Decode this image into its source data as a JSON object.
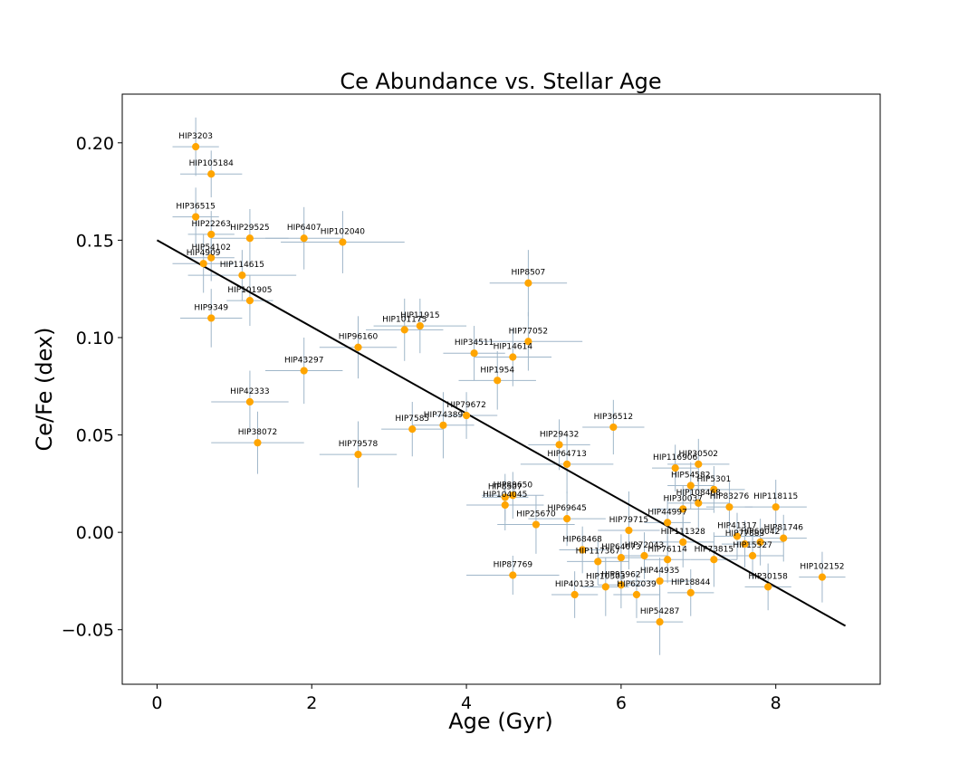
{
  "chart_data": {
    "type": "scatter",
    "title": "Ce Abundance vs. Stellar Age",
    "xlabel": "Age (Gyr)",
    "ylabel": "Ce/Fe (dex)",
    "xlim": [
      -0.45,
      9.35
    ],
    "ylim": [
      -0.078,
      0.225
    ],
    "xticks": [
      0,
      2,
      4,
      6,
      8
    ],
    "xtick_labels": [
      "0",
      "2",
      "4",
      "6",
      "8"
    ],
    "yticks": [
      -0.05,
      0.0,
      0.05,
      0.1,
      0.15,
      0.2
    ],
    "ytick_labels": [
      "−0.05",
      "0.00",
      "0.05",
      "0.10",
      "0.15",
      "0.20"
    ],
    "grid": false,
    "point_color": "#ffa500",
    "errorbar_color": "#9fb6c9",
    "fit_color": "#000000",
    "fit_line": {
      "x": [
        0,
        8.9
      ],
      "y": [
        0.15,
        -0.048
      ]
    },
    "points": [
      {
        "name": "HIP3203",
        "age": 0.5,
        "ce_fe": 0.198,
        "age_err": 0.3,
        "ce_fe_err": 0.015
      },
      {
        "name": "HIP105184",
        "age": 0.7,
        "ce_fe": 0.184,
        "age_err": 0.4,
        "ce_fe_err": 0.012
      },
      {
        "name": "HIP36515",
        "age": 0.5,
        "ce_fe": 0.162,
        "age_err": 0.3,
        "ce_fe_err": 0.015
      },
      {
        "name": "HIP22263",
        "age": 0.7,
        "ce_fe": 0.153,
        "age_err": 0.3,
        "ce_fe_err": 0.012
      },
      {
        "name": "HIP29525",
        "age": 1.2,
        "ce_fe": 0.151,
        "age_err": 0.5,
        "ce_fe_err": 0.015
      },
      {
        "name": "HIP6407",
        "age": 1.9,
        "ce_fe": 0.151,
        "age_err": 0.5,
        "ce_fe_err": 0.016
      },
      {
        "name": "HIP102040",
        "age": 2.4,
        "ce_fe": 0.149,
        "age_err": 0.8,
        "ce_fe_err": 0.016
      },
      {
        "name": "HIP54102",
        "age": 0.7,
        "ce_fe": 0.141,
        "age_err": 0.3,
        "ce_fe_err": 0.012
      },
      {
        "name": "HIP4909",
        "age": 0.6,
        "ce_fe": 0.138,
        "age_err": 0.4,
        "ce_fe_err": 0.015
      },
      {
        "name": "HIP114615",
        "age": 1.1,
        "ce_fe": 0.132,
        "age_err": 0.7,
        "ce_fe_err": 0.013
      },
      {
        "name": "HIP8507",
        "age": 4.8,
        "ce_fe": 0.128,
        "age_err": 0.5,
        "ce_fe_err": 0.017
      },
      {
        "name": "HIP101905",
        "age": 1.2,
        "ce_fe": 0.119,
        "age_err": 0.3,
        "ce_fe_err": 0.013
      },
      {
        "name": "HIP9349",
        "age": 0.7,
        "ce_fe": 0.11,
        "age_err": 0.4,
        "ce_fe_err": 0.015
      },
      {
        "name": "HIP101175",
        "age": 3.2,
        "ce_fe": 0.104,
        "age_err": 0.5,
        "ce_fe_err": 0.016
      },
      {
        "name": "HIP11915",
        "age": 3.4,
        "ce_fe": 0.106,
        "age_err": 0.6,
        "ce_fe_err": 0.014
      },
      {
        "name": "HIP77052",
        "age": 4.8,
        "ce_fe": 0.098,
        "age_err": 0.7,
        "ce_fe_err": 0.015
      },
      {
        "name": "HIP96160",
        "age": 2.6,
        "ce_fe": 0.095,
        "age_err": 0.5,
        "ce_fe_err": 0.016
      },
      {
        "name": "HIP34511",
        "age": 4.1,
        "ce_fe": 0.092,
        "age_err": 0.4,
        "ce_fe_err": 0.014
      },
      {
        "name": "HIP14614",
        "age": 4.6,
        "ce_fe": 0.09,
        "age_err": 0.5,
        "ce_fe_err": 0.015
      },
      {
        "name": "HIP43297",
        "age": 1.9,
        "ce_fe": 0.083,
        "age_err": 0.5,
        "ce_fe_err": 0.017
      },
      {
        "name": "HIP1954",
        "age": 4.4,
        "ce_fe": 0.078,
        "age_err": 0.5,
        "ce_fe_err": 0.015
      },
      {
        "name": "HIP42333",
        "age": 1.2,
        "ce_fe": 0.067,
        "age_err": 0.5,
        "ce_fe_err": 0.016
      },
      {
        "name": "HIP79672",
        "age": 4.0,
        "ce_fe": 0.06,
        "age_err": 0.4,
        "ce_fe_err": 0.012
      },
      {
        "name": "HIP74389",
        "age": 3.7,
        "ce_fe": 0.055,
        "age_err": 0.4,
        "ce_fe_err": 0.017
      },
      {
        "name": "HIP7585",
        "age": 3.3,
        "ce_fe": 0.053,
        "age_err": 0.4,
        "ce_fe_err": 0.014
      },
      {
        "name": "HIP36512",
        "age": 5.9,
        "ce_fe": 0.054,
        "age_err": 0.4,
        "ce_fe_err": 0.014
      },
      {
        "name": "HIP38072",
        "age": 1.3,
        "ce_fe": 0.046,
        "age_err": 0.6,
        "ce_fe_err": 0.016
      },
      {
        "name": "HIP29432",
        "age": 5.2,
        "ce_fe": 0.045,
        "age_err": 0.4,
        "ce_fe_err": 0.013
      },
      {
        "name": "HIP79578",
        "age": 2.6,
        "ce_fe": 0.04,
        "age_err": 0.5,
        "ce_fe_err": 0.017
      },
      {
        "name": "HIP64713",
        "age": 5.3,
        "ce_fe": 0.035,
        "age_err": 0.6,
        "ce_fe_err": 0.015
      },
      {
        "name": "HIP116906",
        "age": 6.7,
        "ce_fe": 0.033,
        "age_err": 0.3,
        "ce_fe_err": 0.012
      },
      {
        "name": "HIP30502",
        "age": 7.0,
        "ce_fe": 0.035,
        "age_err": 0.4,
        "ce_fe_err": 0.013
      },
      {
        "name": "HIP54582",
        "age": 6.9,
        "ce_fe": 0.024,
        "age_err": 0.3,
        "ce_fe_err": 0.012
      },
      {
        "name": "HIP5301",
        "age": 7.2,
        "ce_fe": 0.022,
        "age_err": 0.4,
        "ce_fe_err": 0.012
      },
      {
        "name": "HIP89650",
        "age": 4.6,
        "ce_fe": 0.019,
        "age_err": 0.4,
        "ce_fe_err": 0.012
      },
      {
        "name": "HIP8507",
        "age": 4.5,
        "ce_fe": 0.018,
        "age_err": 0.3,
        "ce_fe_err": 0.012
      },
      {
        "name": "HIP108468",
        "age": 7.0,
        "ce_fe": 0.015,
        "age_err": 0.4,
        "ce_fe_err": 0.015
      },
      {
        "name": "HIP83276",
        "age": 7.4,
        "ce_fe": 0.013,
        "age_err": 0.3,
        "ce_fe_err": 0.013
      },
      {
        "name": "HIP30037",
        "age": 6.8,
        "ce_fe": 0.012,
        "age_err": 0.4,
        "ce_fe_err": 0.012
      },
      {
        "name": "HIP104045",
        "age": 4.5,
        "ce_fe": 0.014,
        "age_err": 0.5,
        "ce_fe_err": 0.013
      },
      {
        "name": "HIP118115",
        "age": 8.0,
        "ce_fe": 0.013,
        "age_err": 0.4,
        "ce_fe_err": 0.014
      },
      {
        "name": "HIP69645",
        "age": 5.3,
        "ce_fe": 0.007,
        "age_err": 0.5,
        "ce_fe_err": 0.014
      },
      {
        "name": "HIP44997",
        "age": 6.6,
        "ce_fe": 0.005,
        "age_err": 0.3,
        "ce_fe_err": 0.012
      },
      {
        "name": "HIP25670",
        "age": 4.9,
        "ce_fe": 0.004,
        "age_err": 0.5,
        "ce_fe_err": 0.015
      },
      {
        "name": "HIP79715",
        "age": 6.1,
        "ce_fe": 0.001,
        "age_err": 0.4,
        "ce_fe_err": 0.02
      },
      {
        "name": "HIP41317",
        "age": 7.5,
        "ce_fe": -0.002,
        "age_err": 0.3,
        "ce_fe_err": 0.012
      },
      {
        "name": "HIP81746",
        "age": 8.1,
        "ce_fe": -0.003,
        "age_err": 0.3,
        "ce_fe_err": 0.012
      },
      {
        "name": "HIP111328",
        "age": 6.8,
        "ce_fe": -0.005,
        "age_err": 0.4,
        "ce_fe_err": 0.013
      },
      {
        "name": "HIP77883",
        "age": 7.6,
        "ce_fe": -0.006,
        "age_err": 0.3,
        "ce_fe_err": 0.012
      },
      {
        "name": "HIP60042",
        "age": 7.8,
        "ce_fe": -0.005,
        "age_err": 0.3,
        "ce_fe_err": 0.012
      },
      {
        "name": "HIP68468",
        "age": 5.5,
        "ce_fe": -0.009,
        "age_err": 0.3,
        "ce_fe_err": 0.012
      },
      {
        "name": "HIP15527",
        "age": 7.7,
        "ce_fe": -0.012,
        "age_err": 0.4,
        "ce_fe_err": 0.012
      },
      {
        "name": "HIP73815",
        "age": 7.2,
        "ce_fe": -0.014,
        "age_err": 0.3,
        "ce_fe_err": 0.014
      },
      {
        "name": "HIP117367",
        "age": 5.7,
        "ce_fe": -0.015,
        "age_err": 0.4,
        "ce_fe_err": 0.012
      },
      {
        "name": "HIP64673",
        "age": 6.0,
        "ce_fe": -0.013,
        "age_err": 0.3,
        "ce_fe_err": 0.012
      },
      {
        "name": "HIP72043",
        "age": 6.3,
        "ce_fe": -0.012,
        "age_err": 0.3,
        "ce_fe_err": 0.012
      },
      {
        "name": "HIP76114",
        "age": 6.6,
        "ce_fe": -0.014,
        "age_err": 0.3,
        "ce_fe_err": 0.012
      },
      {
        "name": "HIP87769",
        "age": 4.6,
        "ce_fe": -0.022,
        "age_err": 0.6,
        "ce_fe_err": 0.01
      },
      {
        "name": "HIP102152",
        "age": 8.6,
        "ce_fe": -0.023,
        "age_err": 0.3,
        "ce_fe_err": 0.013
      },
      {
        "name": "HIP44935",
        "age": 6.5,
        "ce_fe": -0.025,
        "age_err": 0.4,
        "ce_fe_err": 0.012
      },
      {
        "name": "HIP10303",
        "age": 5.8,
        "ce_fe": -0.028,
        "age_err": 0.3,
        "ce_fe_err": 0.015
      },
      {
        "name": "HIP95962",
        "age": 6.0,
        "ce_fe": -0.027,
        "age_err": 0.3,
        "ce_fe_err": 0.012
      },
      {
        "name": "HIP30158",
        "age": 7.9,
        "ce_fe": -0.028,
        "age_err": 0.3,
        "ce_fe_err": 0.012
      },
      {
        "name": "HIP62039",
        "age": 6.2,
        "ce_fe": -0.032,
        "age_err": 0.3,
        "ce_fe_err": 0.012
      },
      {
        "name": "HIP40133",
        "age": 5.4,
        "ce_fe": -0.032,
        "age_err": 0.3,
        "ce_fe_err": 0.012
      },
      {
        "name": "HIP18844",
        "age": 6.9,
        "ce_fe": -0.031,
        "age_err": 0.3,
        "ce_fe_err": 0.012
      },
      {
        "name": "HIP54287",
        "age": 6.5,
        "ce_fe": -0.046,
        "age_err": 0.3,
        "ce_fe_err": 0.017
      }
    ]
  }
}
